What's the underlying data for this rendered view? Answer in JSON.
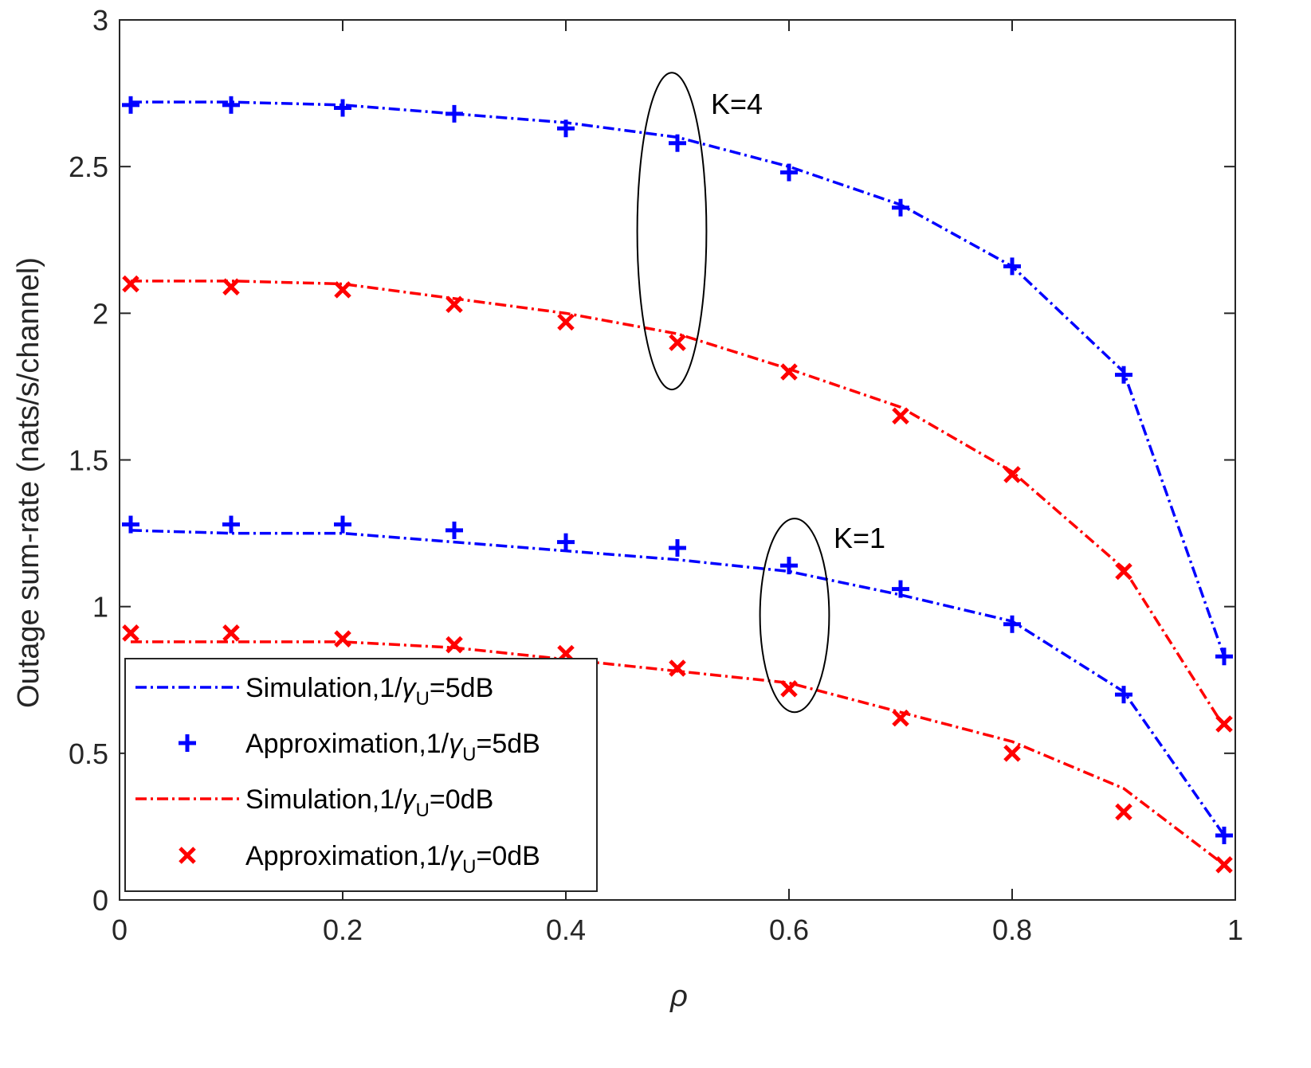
{
  "chart_data": {
    "type": "line",
    "title": "",
    "xlabel": "ρ",
    "ylabel": "Outage sum-rate (nats/s/channel)",
    "xlim": [
      0,
      1
    ],
    "ylim": [
      0,
      3
    ],
    "x_ticks": [
      0,
      0.2,
      0.4,
      0.6,
      0.8,
      1
    ],
    "x_tick_labels": [
      "0",
      "0.2",
      "0.4",
      "0.6",
      "0.8",
      "1"
    ],
    "y_ticks": [
      0,
      0.5,
      1,
      1.5,
      2,
      2.5,
      3
    ],
    "y_tick_labels": [
      "0",
      "0.5",
      "1",
      "1.5",
      "2",
      "2.5",
      "3"
    ],
    "grid": false,
    "legend_position": "bottom-left",
    "x": [
      0.01,
      0.1,
      0.2,
      0.3,
      0.4,
      0.5,
      0.6,
      0.7,
      0.8,
      0.9,
      0.99
    ],
    "series": [
      {
        "name": "Simulation,1/γU=5dB (K=4)",
        "style": "dashdot",
        "color": "#0000ff",
        "values": [
          2.72,
          2.72,
          2.71,
          2.68,
          2.65,
          2.6,
          2.5,
          2.37,
          2.16,
          1.8,
          0.83
        ]
      },
      {
        "name": "Approximation,1/γU=5dB (K=4)",
        "style": "plus",
        "color": "#0000ff",
        "values": [
          2.71,
          2.71,
          2.7,
          2.68,
          2.63,
          2.58,
          2.48,
          2.36,
          2.16,
          1.79,
          0.83
        ]
      },
      {
        "name": "Simulation,1/γU=0dB (K=4)",
        "style": "dashdot",
        "color": "#ff0000",
        "values": [
          2.11,
          2.11,
          2.1,
          2.05,
          2.0,
          1.93,
          1.81,
          1.68,
          1.46,
          1.13,
          0.59
        ]
      },
      {
        "name": "Approximation,1/γU=0dB (K=4)",
        "style": "cross",
        "color": "#ff0000",
        "values": [
          2.1,
          2.09,
          2.08,
          2.03,
          1.97,
          1.9,
          1.8,
          1.65,
          1.45,
          1.12,
          0.6
        ]
      },
      {
        "name": "Simulation,1/γU=5dB (K=1)",
        "style": "dashdot",
        "color": "#0000ff",
        "values": [
          1.26,
          1.25,
          1.25,
          1.22,
          1.19,
          1.16,
          1.12,
          1.04,
          0.95,
          0.71,
          0.22
        ]
      },
      {
        "name": "Approximation,1/γU=5dB (K=1)",
        "style": "plus",
        "color": "#0000ff",
        "values": [
          1.28,
          1.28,
          1.28,
          1.26,
          1.22,
          1.2,
          1.14,
          1.06,
          0.94,
          0.7,
          0.22
        ]
      },
      {
        "name": "Simulation,1/γU=0dB (K=1)",
        "style": "dashdot",
        "color": "#ff0000",
        "values": [
          0.88,
          0.88,
          0.88,
          0.86,
          0.82,
          0.78,
          0.74,
          0.64,
          0.54,
          0.38,
          0.12
        ]
      },
      {
        "name": "Approximation,1/γU=0dB (K=1)",
        "style": "cross",
        "color": "#ff0000",
        "values": [
          0.91,
          0.91,
          0.89,
          0.87,
          0.84,
          0.79,
          0.72,
          0.62,
          0.5,
          0.3,
          0.12
        ]
      }
    ],
    "legend": [
      {
        "prefix": "Simulation,1/",
        "sym": "γ",
        "sub": "U",
        "suffix": "=5dB",
        "style": "dashdot",
        "color": "#0000ff"
      },
      {
        "prefix": "Approximation,1/",
        "sym": "γ",
        "sub": "U",
        "suffix": "=5dB",
        "style": "plus",
        "color": "#0000ff"
      },
      {
        "prefix": "Simulation,1/",
        "sym": "γ",
        "sub": "U",
        "suffix": "=0dB",
        "style": "dashdot",
        "color": "#ff0000"
      },
      {
        "prefix": "Approximation,1/",
        "sym": "γ",
        "sub": "U",
        "suffix": "=0dB",
        "style": "cross",
        "color": "#ff0000"
      }
    ],
    "annotations": [
      {
        "text": "K=4",
        "ellipse_center": [
          0.495,
          2.28
        ],
        "ellipse_radius": [
          0.031,
          0.54
        ],
        "label_at": [
          0.53,
          2.68
        ]
      },
      {
        "text": "K=1",
        "ellipse_center": [
          0.605,
          0.97
        ],
        "ellipse_radius": [
          0.031,
          0.33
        ],
        "label_at": [
          0.64,
          1.2
        ]
      }
    ]
  }
}
